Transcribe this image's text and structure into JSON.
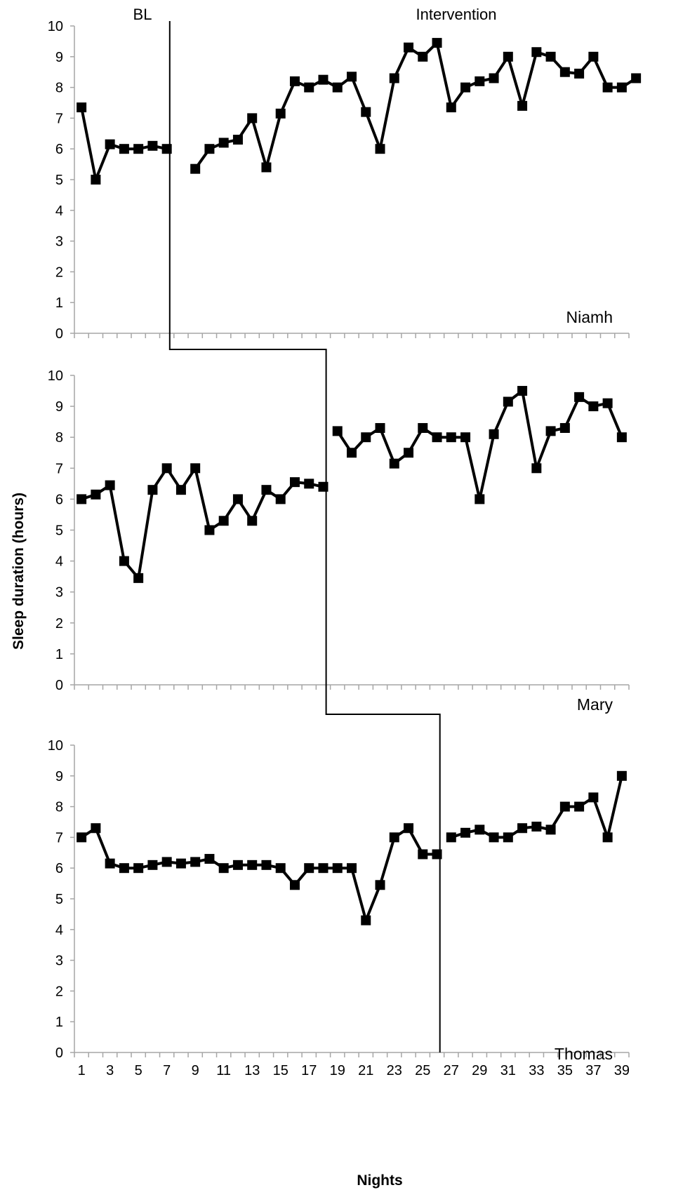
{
  "chart_data": [
    {
      "type": "line",
      "participant": "Niamh",
      "phase_labels": {
        "baseline": "BL",
        "intervention": "Intervention"
      },
      "ylim": [
        0,
        10
      ],
      "yticks": [
        0,
        1,
        2,
        3,
        4,
        5,
        6,
        7,
        8,
        9,
        10
      ],
      "xlim": [
        1,
        39
      ],
      "phase_change_after_night": 7,
      "series": [
        {
          "values": [
            7.35,
            5.0,
            6.15,
            6.0,
            6.0,
            6.1,
            6.0,
            null,
            5.35,
            6.0,
            6.2,
            6.3,
            7.0,
            5.4,
            7.15,
            8.2,
            8.0,
            8.25,
            8.0,
            8.35,
            7.2,
            6.0,
            8.3,
            9.3,
            9.0,
            9.45,
            7.35,
            8.0,
            8.2,
            8.3,
            9.0,
            7.4,
            9.15,
            9.0,
            8.5,
            8.45,
            9.0,
            8.0,
            8.0,
            8.3
          ]
        }
      ]
    },
    {
      "type": "line",
      "participant": "Mary",
      "ylim": [
        0,
        10
      ],
      "yticks": [
        0,
        1,
        2,
        3,
        4,
        5,
        6,
        7,
        8,
        9,
        10
      ],
      "xlim": [
        1,
        39
      ],
      "phase_change_after_night": 18,
      "series": [
        {
          "values": [
            6.0,
            6.15,
            6.45,
            4.0,
            3.45,
            6.3,
            7.0,
            6.3,
            7.0,
            5.0,
            5.3,
            6.0,
            5.3,
            6.3,
            6.0,
            6.55,
            6.5,
            6.4,
            8.2,
            7.5,
            8.0,
            8.3,
            7.15,
            7.5,
            8.3,
            8.0,
            8.0,
            8.0,
            6.0,
            8.1,
            9.15,
            9.5,
            7.0,
            8.2,
            8.3,
            9.3,
            9.0,
            9.1,
            8.0
          ]
        }
      ]
    },
    {
      "type": "line",
      "participant": "Thomas",
      "ylim": [
        0,
        10
      ],
      "yticks": [
        0,
        1,
        2,
        3,
        4,
        5,
        6,
        7,
        8,
        9,
        10
      ],
      "xlim": [
        1,
        39
      ],
      "phase_change_after_night": 26,
      "xticks": [
        1,
        3,
        5,
        7,
        9,
        11,
        13,
        15,
        17,
        19,
        21,
        23,
        25,
        27,
        29,
        31,
        33,
        35,
        37,
        39
      ],
      "xlabel": "Nights",
      "series": [
        {
          "values": [
            7.0,
            7.3,
            6.15,
            6.0,
            6.0,
            6.1,
            6.2,
            6.15,
            6.2,
            6.3,
            6.0,
            6.1,
            6.1,
            6.1,
            6.0,
            5.45,
            6.0,
            6.0,
            6.0,
            6.0,
            4.3,
            5.45,
            7.0,
            7.3,
            6.45,
            6.45,
            7.0,
            7.15,
            7.25,
            7.0,
            7.0,
            7.3,
            7.35,
            7.25,
            8.0,
            8.0,
            8.3,
            7.0,
            9.0
          ]
        }
      ]
    }
  ],
  "ylabel": "Sleep duration (hours)",
  "colors": {
    "line": "#000000",
    "marker": "#000000",
    "axis": "#a6a6a6",
    "phase_line": "#000000"
  }
}
